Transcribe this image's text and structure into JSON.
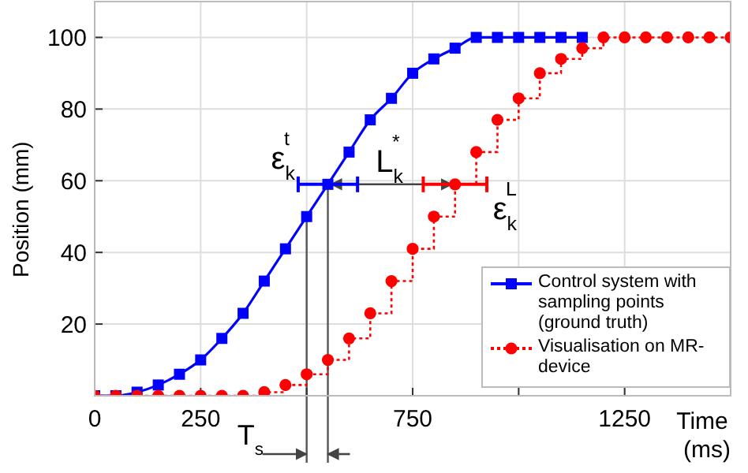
{
  "chart_data": {
    "type": "line",
    "xlabel": "Time (ms)",
    "ylabel": "Position (mm)",
    "x": [
      0,
      50,
      100,
      150,
      200,
      250,
      300,
      350,
      400,
      450,
      500,
      550,
      600,
      650,
      700,
      750,
      800,
      850,
      900,
      950,
      1000,
      1050,
      1100,
      1150,
      1200,
      1250,
      1300,
      1350,
      1400,
      1450,
      1500
    ],
    "series": [
      {
        "name": "Control system with sampling points (ground truth)",
        "type": "line",
        "color": "#0000ff",
        "marker": "square",
        "line_style": "solid",
        "values": [
          0,
          0,
          1,
          3,
          6,
          10,
          16,
          23,
          32,
          41,
          50,
          59,
          68,
          77,
          83,
          90,
          94,
          97,
          100,
          100,
          100,
          100,
          100,
          100,
          null,
          null,
          null,
          null,
          null,
          null,
          null
        ],
        "xerrors": [
          null,
          null,
          null,
          null,
          null,
          null,
          null,
          null,
          null,
          null,
          null,
          70,
          null,
          null,
          null,
          null,
          null,
          null,
          null,
          null,
          null,
          null,
          null,
          null,
          null,
          null,
          null,
          null,
          null,
          null,
          null
        ]
      },
      {
        "name": "Visualisation on MR-device",
        "type": "step",
        "color": "#ff0000",
        "marker": "circle",
        "line_style": "dotted",
        "values": [
          0,
          0,
          0,
          0,
          0,
          0,
          0,
          0,
          1,
          3,
          6,
          10,
          16,
          23,
          32,
          41,
          50,
          59,
          68,
          77,
          83,
          90,
          94,
          97,
          100,
          100,
          100,
          100,
          100,
          100,
          100
        ],
        "xerrors": [
          null,
          null,
          null,
          null,
          null,
          null,
          null,
          null,
          null,
          null,
          null,
          null,
          null,
          null,
          null,
          null,
          null,
          75,
          null,
          null,
          null,
          null,
          null,
          null,
          null,
          null,
          null,
          null,
          null,
          null,
          null
        ]
      }
    ],
    "xlim": [
      0,
      1500
    ],
    "xticks": [
      0,
      250,
      {
        "value": 500,
        "label": null
      },
      750,
      {
        "value": 1000,
        "label": null
      },
      1250
    ],
    "ylim": [
      0,
      110
    ],
    "yticks": [
      20,
      40,
      60,
      80,
      100
    ],
    "grid": true,
    "legend": "bottom right",
    "ref_lines": [
      {
        "axis": "x",
        "value": 500,
        "color": "#555555"
      },
      {
        "axis": "x",
        "value": 550,
        "color": "#555555"
      }
    ],
    "annotations": [
      {
        "text": "ε$_{k}$$^{t}$",
        "x": 550,
        "y": 59
      },
      "L$_{k}$$^{*}$",
      {
        "text": "ε$_{k}$$^{L}$",
        "x": 850,
        "y": 52
      },
      "T$_{s}$"
    ]
  }
}
